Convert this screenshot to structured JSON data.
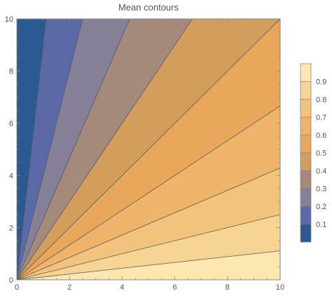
{
  "chart_data": {
    "type": "contour",
    "title": "Mean contours",
    "xlabel": "",
    "ylabel": "",
    "xlim": [
      0,
      10
    ],
    "ylim": [
      0,
      10
    ],
    "x_ticks": [
      "0",
      "2",
      "4",
      "6",
      "8",
      "10"
    ],
    "y_ticks": [
      "0",
      "2",
      "4",
      "6",
      "8",
      "10"
    ],
    "contour_levels": [
      0.1,
      0.2,
      0.3,
      0.4,
      0.5,
      0.6,
      0.7,
      0.8,
      0.9
    ],
    "legend_labels": [
      "0.1",
      "0.2",
      "0.3",
      "0.4",
      "0.5",
      "0.6",
      "0.7",
      "0.8",
      "0.9"
    ],
    "legend_position": "right",
    "band_colors": [
      "#2a5a91",
      "#5b6aa6",
      "#857f97",
      "#a5897b",
      "#d39d5c",
      "#e9a75c",
      "#eeb469",
      "#f2c37c",
      "#f6d493",
      "#fce7b0"
    ],
    "line_color": "#555555"
  }
}
